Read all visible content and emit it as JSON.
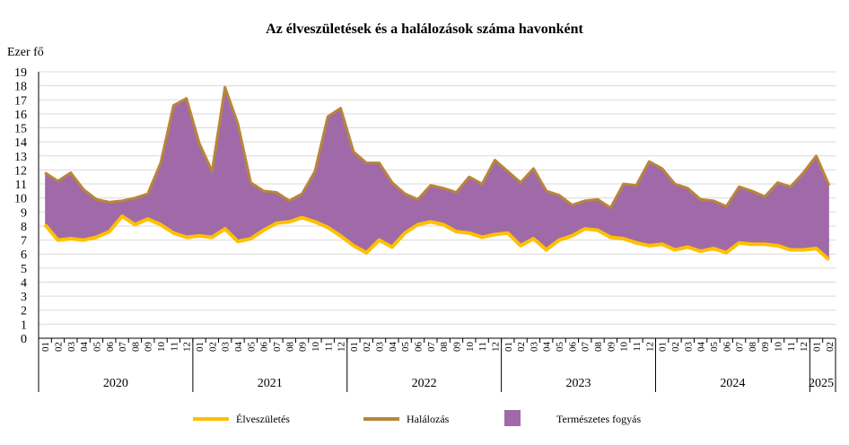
{
  "chart_data": {
    "type": "area",
    "title": "Az élveszületések és a halálozások száma havonként",
    "ylabel": "Ezer fő",
    "ylim": [
      0,
      19
    ],
    "yticks": [
      "0",
      "1",
      "2",
      "3",
      "4",
      "5",
      "6",
      "7",
      "8",
      "9",
      "10",
      "11",
      "12",
      "13",
      "14",
      "15",
      "16",
      "17",
      "18",
      "19"
    ],
    "grid": true,
    "legend_position": "bottom",
    "colors": {
      "births": "#ffc000",
      "deaths": "#b8863b",
      "fill": "#a06aa8"
    },
    "x": [
      "01",
      "02",
      "03",
      "04",
      "05",
      "06",
      "07",
      "08",
      "09",
      "10",
      "11",
      "12",
      "01",
      "02",
      "03",
      "04",
      "05",
      "06",
      "07",
      "08",
      "09",
      "10",
      "11",
      "12",
      "01",
      "02",
      "03",
      "04",
      "05",
      "06",
      "07",
      "08",
      "09",
      "10",
      "11",
      "12",
      "01",
      "02",
      "03",
      "04",
      "05",
      "06",
      "07",
      "08",
      "09",
      "10",
      "11",
      "12",
      "01",
      "02",
      "03",
      "04",
      "05",
      "06",
      "07",
      "08",
      "09",
      "10",
      "11",
      "12",
      "01",
      "02"
    ],
    "years": [
      {
        "label": "2020",
        "start": 0,
        "count": 12
      },
      {
        "label": "2021",
        "start": 12,
        "count": 12
      },
      {
        "label": "2022",
        "start": 24,
        "count": 12
      },
      {
        "label": "2023",
        "start": 36,
        "count": 12
      },
      {
        "label": "2024",
        "start": 48,
        "count": 12
      },
      {
        "label": "2025",
        "start": 60,
        "count": 2
      }
    ],
    "series": [
      {
        "name": "Élveszületés",
        "values": [
          8.1,
          7.0,
          7.1,
          7.0,
          7.2,
          7.6,
          8.7,
          8.1,
          8.5,
          8.1,
          7.5,
          7.2,
          7.3,
          7.2,
          7.8,
          6.9,
          7.1,
          7.7,
          8.2,
          8.3,
          8.6,
          8.3,
          7.9,
          7.3,
          6.6,
          6.1,
          7.0,
          6.5,
          7.5,
          8.1,
          8.3,
          8.1,
          7.6,
          7.5,
          7.2,
          7.4,
          7.5,
          6.6,
          7.1,
          6.3,
          7.0,
          7.3,
          7.8,
          7.7,
          7.2,
          7.1,
          6.8,
          6.6,
          6.7,
          6.3,
          6.5,
          6.2,
          6.4,
          6.1,
          6.8,
          6.7,
          6.7,
          6.6,
          6.3,
          6.3,
          6.4,
          5.6
        ]
      },
      {
        "name": "Halálozás",
        "values": [
          11.8,
          11.2,
          11.8,
          10.6,
          9.9,
          9.7,
          9.8,
          10.0,
          10.3,
          12.5,
          16.6,
          17.1,
          13.9,
          11.9,
          17.9,
          15.3,
          11.1,
          10.5,
          10.4,
          9.8,
          10.3,
          11.9,
          15.8,
          16.4,
          13.3,
          12.5,
          12.5,
          11.1,
          10.3,
          9.9,
          10.9,
          10.7,
          10.4,
          11.5,
          11.0,
          12.7,
          11.9,
          11.1,
          12.1,
          10.5,
          10.2,
          9.5,
          9.8,
          9.9,
          9.3,
          11.0,
          10.9,
          12.6,
          12.1,
          11.0,
          10.7,
          9.9,
          9.8,
          9.4,
          10.8,
          10.5,
          10.1,
          11.1,
          10.8,
          11.8,
          13.0,
          10.9
        ]
      }
    ],
    "legend": [
      "Élveszületés",
      "Halálozás",
      "Természetes fogyás"
    ]
  }
}
